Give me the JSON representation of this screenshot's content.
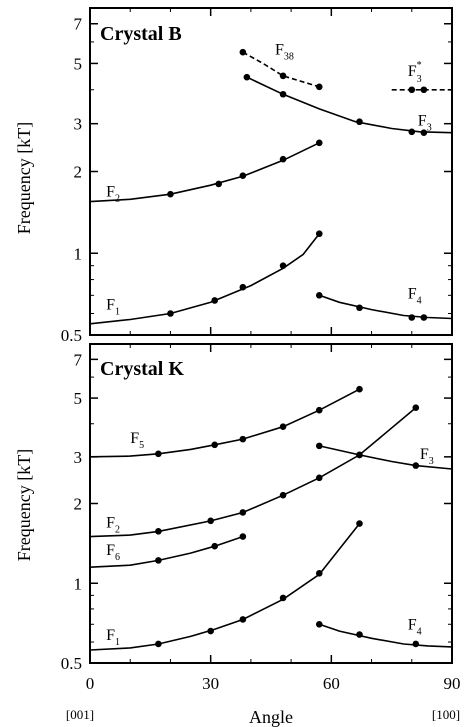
{
  "chart_data": [
    {
      "type": "scatter",
      "title": "Crystal B",
      "xlabel": "",
      "ylabel": "Frequency [kT]",
      "xlim": [
        0,
        90
      ],
      "ylim": [
        0.5,
        8
      ],
      "y_scale": "log",
      "y_ticks": [
        0.5,
        1,
        2,
        3,
        5,
        7
      ],
      "y_tick_labels": [
        "0.5",
        "1",
        "2",
        "3",
        "5",
        "7"
      ],
      "x_ticks": [
        0,
        30,
        60,
        90
      ],
      "grid": false,
      "series": [
        {
          "name": "F",
          "sub": "1",
          "sup": "",
          "dashed": false,
          "label_x": 4,
          "label_y": 0.62,
          "curve": [
            [
              0,
              0.55
            ],
            [
              10,
              0.57
            ],
            [
              20,
              0.6
            ],
            [
              30,
              0.66
            ],
            [
              40,
              0.76
            ],
            [
              48,
              0.88
            ],
            [
              53,
              0.99
            ],
            [
              57,
              1.18
            ]
          ],
          "points": [
            [
              20,
              0.6
            ],
            [
              31,
              0.67
            ],
            [
              38,
              0.75
            ],
            [
              48,
              0.9
            ],
            [
              57,
              1.18
            ]
          ]
        },
        {
          "name": "F",
          "sub": "2",
          "sup": "",
          "dashed": false,
          "label_x": 4,
          "label_y": 1.62,
          "curve": [
            [
              0,
              1.55
            ],
            [
              10,
              1.58
            ],
            [
              20,
              1.65
            ],
            [
              30,
              1.78
            ],
            [
              38,
              1.92
            ],
            [
              48,
              2.2
            ],
            [
              57,
              2.55
            ]
          ],
          "points": [
            [
              20,
              1.65
            ],
            [
              32,
              1.8
            ],
            [
              38,
              1.93
            ],
            [
              48,
              2.22
            ],
            [
              57,
              2.55
            ]
          ]
        },
        {
          "name": "F",
          "sub": "38",
          "sup": "",
          "dashed": true,
          "label_x": 46,
          "label_y": 5.4,
          "curve": [
            [
              38,
              5.5
            ],
            [
              43,
              5.0
            ],
            [
              48,
              4.5
            ],
            [
              57,
              4.1
            ]
          ],
          "points": [
            [
              38,
              5.5
            ],
            [
              48,
              4.5
            ],
            [
              57,
              4.1
            ]
          ]
        },
        {
          "name": "F",
          "sub": "3",
          "sup": "",
          "dashed": false,
          "label_x": 81.5,
          "label_y": 2.95,
          "curve": [
            [
              39,
              4.45
            ],
            [
              48,
              3.85
            ],
            [
              57,
              3.4
            ],
            [
              66,
              3.05
            ],
            [
              75,
              2.88
            ],
            [
              82,
              2.8
            ],
            [
              90,
              2.78
            ]
          ],
          "points": [
            [
              39,
              4.45
            ],
            [
              48,
              3.85
            ],
            [
              67,
              3.05
            ],
            [
              80,
              2.8
            ],
            [
              83,
              2.78
            ]
          ]
        },
        {
          "name": "F",
          "sub": "3",
          "sup": "*",
          "dashed": true,
          "label_x": 79,
          "label_y": 4.5,
          "curve": [
            [
              75,
              4.0
            ],
            [
              90,
              4.0
            ]
          ],
          "points": [
            [
              80,
              4.0
            ],
            [
              83,
              4.0
            ]
          ]
        },
        {
          "name": "F",
          "sub": "4",
          "sup": "",
          "dashed": false,
          "label_x": 79,
          "label_y": 0.68,
          "curve": [
            [
              57,
              0.7
            ],
            [
              62,
              0.66
            ],
            [
              70,
              0.62
            ],
            [
              78,
              0.59
            ],
            [
              84,
              0.58
            ],
            [
              90,
              0.575
            ]
          ],
          "points": [
            [
              57,
              0.7
            ],
            [
              67,
              0.63
            ],
            [
              80,
              0.58
            ],
            [
              83,
              0.58
            ]
          ]
        }
      ]
    },
    {
      "type": "scatter",
      "title": "Crystal K",
      "xlabel": "Angle",
      "ylabel": "Frequency [kT]",
      "xlim": [
        0,
        90
      ],
      "ylim": [
        0.5,
        8
      ],
      "y_scale": "log",
      "y_ticks": [
        0.5,
        1,
        2,
        3,
        5,
        7
      ],
      "y_tick_labels": [
        "0.5",
        "1",
        "2",
        "3",
        "5",
        "7"
      ],
      "x_ticks": [
        0,
        30,
        60,
        90
      ],
      "x_tick_labels": [
        "0",
        "30",
        "60",
        "90"
      ],
      "x_end_labels": [
        "[001]",
        "[100]"
      ],
      "grid": false,
      "series": [
        {
          "name": "F",
          "sub": "1",
          "sup": "",
          "dashed": false,
          "label_x": 4,
          "label_y": 0.61,
          "curve": [
            [
              0,
              0.56
            ],
            [
              10,
              0.57
            ],
            [
              17,
              0.59
            ],
            [
              25,
              0.63
            ],
            [
              31,
              0.67
            ],
            [
              38,
              0.73
            ],
            [
              48,
              0.87
            ],
            [
              57,
              1.08
            ],
            [
              67,
              1.68
            ]
          ],
          "points": [
            [
              17,
              0.59
            ],
            [
              30,
              0.66
            ],
            [
              38,
              0.73
            ],
            [
              48,
              0.88
            ],
            [
              57,
              1.09
            ],
            [
              67,
              1.68
            ]
          ]
        },
        {
          "name": "F",
          "sub": "2",
          "sup": "",
          "dashed": false,
          "label_x": 4,
          "label_y": 1.62,
          "curve": [
            [
              0,
              1.5
            ],
            [
              10,
              1.52
            ],
            [
              17,
              1.57
            ],
            [
              30,
              1.72
            ],
            [
              38,
              1.85
            ],
            [
              48,
              2.15
            ],
            [
              57,
              2.5
            ],
            [
              67,
              3.05
            ],
            [
              81,
              4.6
            ]
          ],
          "points": [
            [
              17,
              1.57
            ],
            [
              30,
              1.72
            ],
            [
              38,
              1.85
            ],
            [
              48,
              2.15
            ],
            [
              57,
              2.5
            ],
            [
              67,
              3.05
            ],
            [
              81,
              4.6
            ]
          ]
        },
        {
          "name": "F",
          "sub": "5",
          "sup": "",
          "dashed": false,
          "label_x": 10,
          "label_y": 3.38,
          "curve": [
            [
              0,
              3.0
            ],
            [
              10,
              3.02
            ],
            [
              17,
              3.08
            ],
            [
              25,
              3.2
            ],
            [
              31,
              3.33
            ],
            [
              38,
              3.5
            ],
            [
              48,
              3.9
            ],
            [
              57,
              4.5
            ],
            [
              67,
              5.4
            ]
          ],
          "points": [
            [
              17,
              3.08
            ],
            [
              31,
              3.33
            ],
            [
              38,
              3.5
            ],
            [
              48,
              3.9
            ],
            [
              57,
              4.5
            ],
            [
              67,
              5.4
            ]
          ]
        },
        {
          "name": "F",
          "sub": "6",
          "sup": "",
          "dashed": false,
          "label_x": 4,
          "label_y": 1.28,
          "curve": [
            [
              0,
              1.15
            ],
            [
              10,
              1.17
            ],
            [
              17,
              1.22
            ],
            [
              25,
              1.3
            ],
            [
              31,
              1.38
            ],
            [
              38,
              1.5
            ]
          ],
          "points": [
            [
              17,
              1.22
            ],
            [
              31,
              1.38
            ],
            [
              38,
              1.5
            ]
          ]
        },
        {
          "name": "F",
          "sub": "3",
          "sup": "",
          "dashed": false,
          "label_x": 82,
          "label_y": 2.95,
          "curve": [
            [
              57,
              3.3
            ],
            [
              67,
              3.05
            ],
            [
              75,
              2.88
            ],
            [
              81,
              2.78
            ],
            [
              90,
              2.7
            ]
          ],
          "points": [
            [
              57,
              3.3
            ],
            [
              67,
              3.05
            ],
            [
              81,
              2.78
            ]
          ]
        },
        {
          "name": "F",
          "sub": "4",
          "sup": "",
          "dashed": false,
          "label_x": 79,
          "label_y": 0.67,
          "curve": [
            [
              57,
              0.7
            ],
            [
              62,
              0.66
            ],
            [
              70,
              0.62
            ],
            [
              78,
              0.59
            ],
            [
              84,
              0.58
            ],
            [
              90,
              0.575
            ]
          ],
          "points": [
            [
              57,
              0.7
            ],
            [
              67,
              0.64
            ],
            [
              81,
              0.59
            ]
          ]
        }
      ]
    }
  ]
}
